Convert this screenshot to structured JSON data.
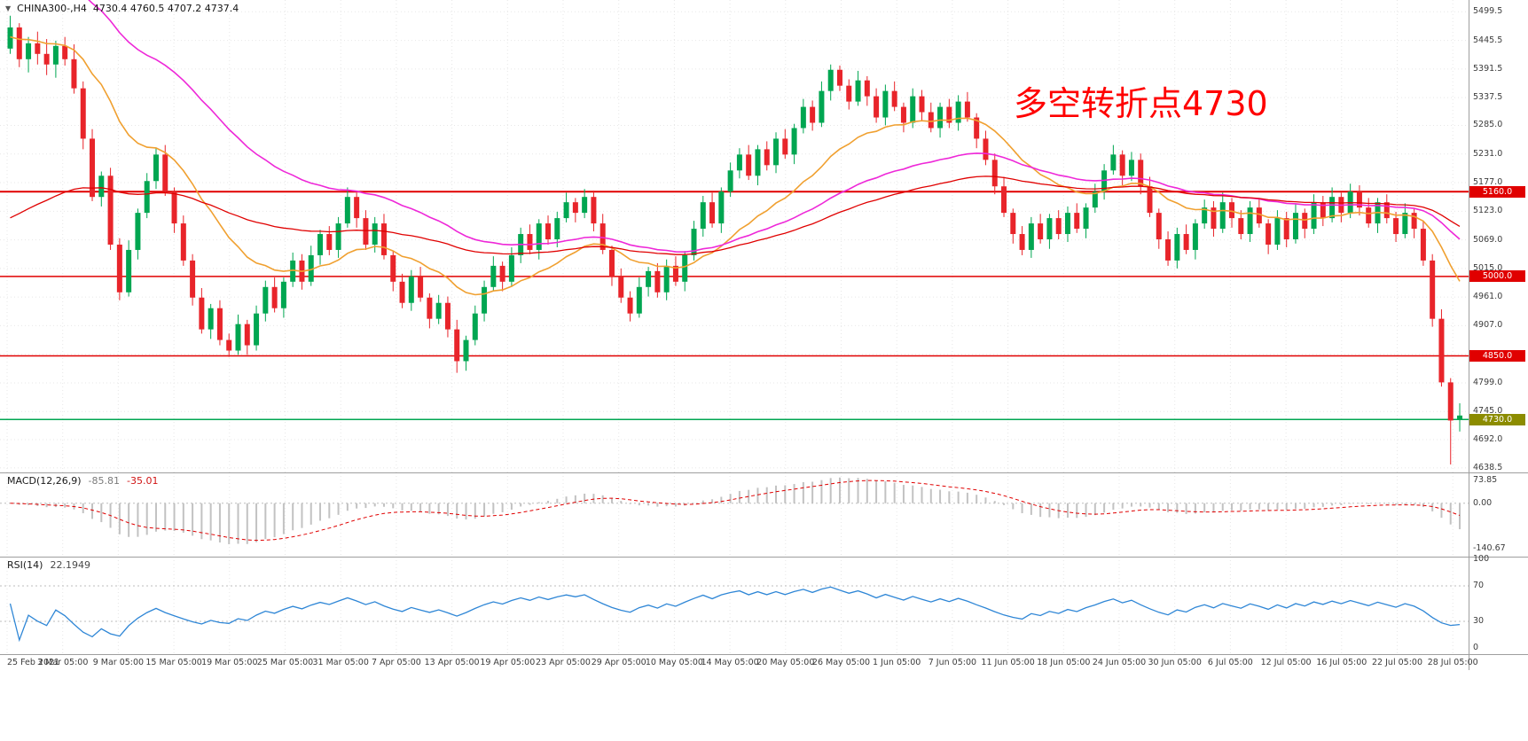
{
  "header": {
    "dropdown_icon": "▼",
    "symbol": "CHINA300-,H4",
    "ohlc": "4730.4 4760.5 4707.2 4737.4"
  },
  "annotation": {
    "text": "多空转折点4730",
    "color": "#ff0000"
  },
  "colors": {
    "up": "#00a651",
    "down": "#e8242a",
    "rsi": "#2e86d6",
    "macd_hist": "#c2c2c2",
    "macd_signal": "#e00000"
  },
  "price_axis": {
    "labels": [
      "5499.5",
      "5445.5",
      "5391.5",
      "5337.5",
      "5285.0",
      "5231.0",
      "5177.0",
      "5123.0",
      "5069.0",
      "5015.0",
      "4961.0",
      "4907.0",
      "4853.0",
      "4799.0",
      "4745.0",
      "4692.0",
      "4638.5"
    ],
    "values": [
      5499.5,
      5445.5,
      5391.5,
      5337.5,
      5285.0,
      5231.0,
      5177.0,
      5123.0,
      5069.0,
      5015.0,
      4961.0,
      4907.0,
      4853.0,
      4799.0,
      4745.0,
      4692.0,
      4638.5
    ]
  },
  "time_axis": {
    "labels": [
      "25 Feb 2021",
      "3 Mar 05:00",
      "9 Mar 05:00",
      "15 Mar 05:00",
      "19 Mar 05:00",
      "25 Mar 05:00",
      "31 Mar 05:00",
      "7 Apr 05:00",
      "13 Apr 05:00",
      "19 Apr 05:00",
      "23 Apr 05:00",
      "29 Apr 05:00",
      "10 May 05:00",
      "14 May 05:00",
      "20 May 05:00",
      "26 May 05:00",
      "1 Jun 05:00",
      "7 Jun 05:00",
      "11 Jun 05:00",
      "18 Jun 05:00",
      "24 Jun 05:00",
      "30 Jun 05:00",
      "6 Jul 05:00",
      "12 Jul 05:00",
      "16 Jul 05:00",
      "22 Jul 05:00",
      "28 Jul 05:00"
    ]
  },
  "hlines": [
    {
      "price": 5160,
      "label": "5160.0",
      "line_color": "#e00000",
      "tag_bg": "#e00000"
    },
    {
      "price": 5000,
      "label": "5000.0",
      "line_color": "#e00000",
      "tag_bg": "#e00000"
    },
    {
      "price": 4850,
      "label": "4850.0",
      "line_color": "#e00000",
      "tag_bg": "#e00000"
    },
    {
      "price": 4730,
      "label": "4730.0",
      "line_color": "#00a651",
      "tag_bg": "#8c8c00"
    }
  ],
  "macd": {
    "label": "MACD(12,26,9)",
    "value_main": "-85.81",
    "value_signal": "-35.01",
    "axis_top": "73.85",
    "axis_zero": "0.00",
    "axis_bottom": "-140.67"
  },
  "rsi": {
    "label": "RSI(14)",
    "value": "22.1949",
    "axis_100": "100",
    "axis_70": "70",
    "axis_30": "30",
    "axis_0": "0",
    "levels": [
      70,
      30
    ]
  },
  "chart_data": {
    "type": "candlestick",
    "symbol": "CHINA300",
    "timeframe": "H4",
    "last_ohlc": {
      "open": 4730.4,
      "high": 4760.5,
      "low": 4707.2,
      "close": 4737.4
    },
    "y_range": [
      4638.5,
      5499.5
    ],
    "support_resistance": [
      5160,
      5000,
      4850,
      4730
    ],
    "annotation": "多空转折点4730",
    "overlays": [
      {
        "name": "ma-fast",
        "color": "#f0a030",
        "period": 18,
        "seed": 5450,
        "width": 1.6
      },
      {
        "name": "ma-mid",
        "color": "#ee28d8",
        "period": 45,
        "seed": 5600,
        "width": 1.6
      },
      {
        "name": "ma-slow",
        "color": "#e00000",
        "period": 70,
        "seed": 5100,
        "width": 1.3
      }
    ],
    "indicators": [
      {
        "name": "MACD",
        "params": [
          12,
          26,
          9
        ],
        "current": [
          -85.81,
          -35.01
        ],
        "axis": [
          73.85,
          0.0,
          -140.67
        ]
      },
      {
        "name": "RSI",
        "params": [
          14
        ],
        "current": 22.1949,
        "levels": [
          70,
          30
        ]
      }
    ],
    "candles": [
      [
        5430,
        5492,
        5420,
        5470
      ],
      [
        5470,
        5478,
        5395,
        5410
      ],
      [
        5410,
        5452,
        5385,
        5440
      ],
      [
        5440,
        5462,
        5400,
        5420
      ],
      [
        5420,
        5448,
        5380,
        5400
      ],
      [
        5400,
        5445,
        5375,
        5435
      ],
      [
        5435,
        5452,
        5398,
        5410
      ],
      [
        5410,
        5438,
        5345,
        5355
      ],
      [
        5355,
        5368,
        5240,
        5260
      ],
      [
        5260,
        5278,
        5142,
        5150
      ],
      [
        5150,
        5198,
        5132,
        5190
      ],
      [
        5190,
        5205,
        5050,
        5060
      ],
      [
        5060,
        5072,
        4955,
        4970
      ],
      [
        4970,
        5068,
        4962,
        5050
      ],
      [
        5050,
        5128,
        5032,
        5120
      ],
      [
        5120,
        5195,
        5110,
        5180
      ],
      [
        5180,
        5242,
        5165,
        5230
      ],
      [
        5230,
        5248,
        5152,
        5160
      ],
      [
        5160,
        5168,
        5082,
        5100
      ],
      [
        5100,
        5115,
        5020,
        5030
      ],
      [
        5030,
        5042,
        4945,
        4960
      ],
      [
        4960,
        4978,
        4892,
        4900
      ],
      [
        4900,
        4948,
        4882,
        4940
      ],
      [
        4940,
        4955,
        4870,
        4880
      ],
      [
        4880,
        4892,
        4848,
        4860
      ],
      [
        4860,
        4928,
        4852,
        4910
      ],
      [
        4910,
        4918,
        4852,
        4870
      ],
      [
        4870,
        4945,
        4860,
        4930
      ],
      [
        4930,
        4992,
        4915,
        4980
      ],
      [
        4980,
        4998,
        4932,
        4940
      ],
      [
        4940,
        4998,
        4922,
        4990
      ],
      [
        4990,
        5045,
        4980,
        5030
      ],
      [
        5030,
        5042,
        4975,
        4990
      ],
      [
        4990,
        5058,
        4982,
        5040
      ],
      [
        5040,
        5088,
        5022,
        5080
      ],
      [
        5080,
        5095,
        5040,
        5050
      ],
      [
        5050,
        5112,
        5035,
        5100
      ],
      [
        5100,
        5168,
        5092,
        5150
      ],
      [
        5150,
        5158,
        5092,
        5110
      ],
      [
        5110,
        5125,
        5050,
        5060
      ],
      [
        5060,
        5112,
        5045,
        5100
      ],
      [
        5100,
        5118,
        5032,
        5040
      ],
      [
        5040,
        5048,
        4972,
        4990
      ],
      [
        4990,
        5005,
        4940,
        4950
      ],
      [
        4950,
        5012,
        4935,
        5000
      ],
      [
        5000,
        5018,
        4952,
        4960
      ],
      [
        4960,
        4968,
        4902,
        4920
      ],
      [
        4920,
        4965,
        4910,
        4950
      ],
      [
        4950,
        4962,
        4885,
        4900
      ],
      [
        4900,
        4918,
        4818,
        4840
      ],
      [
        4840,
        4888,
        4822,
        4880
      ],
      [
        4880,
        4945,
        4870,
        4930
      ],
      [
        4930,
        4992,
        4915,
        4980
      ],
      [
        4980,
        5038,
        4972,
        5020
      ],
      [
        5020,
        5028,
        4972,
        4990
      ],
      [
        4990,
        5055,
        4980,
        5040
      ],
      [
        5040,
        5092,
        5025,
        5080
      ],
      [
        5080,
        5098,
        5042,
        5050
      ],
      [
        5050,
        5108,
        5032,
        5100
      ],
      [
        5100,
        5115,
        5060,
        5070
      ],
      [
        5070,
        5122,
        5055,
        5110
      ],
      [
        5110,
        5158,
        5102,
        5140
      ],
      [
        5140,
        5148,
        5102,
        5120
      ],
      [
        5120,
        5165,
        5110,
        5150
      ],
      [
        5150,
        5162,
        5085,
        5100
      ],
      [
        5100,
        5118,
        5042,
        5050
      ],
      [
        5050,
        5058,
        4982,
        5000
      ],
      [
        5000,
        5015,
        4950,
        4960
      ],
      [
        4960,
        4972,
        4915,
        4930
      ],
      [
        4930,
        4998,
        4922,
        4980
      ],
      [
        4980,
        5018,
        4962,
        5010
      ],
      [
        5010,
        5025,
        4960,
        4970
      ],
      [
        4970,
        5032,
        4955,
        5020
      ],
      [
        5020,
        5038,
        4982,
        4990
      ],
      [
        4990,
        5048,
        4972,
        5040
      ],
      [
        5040,
        5105,
        5030,
        5090
      ],
      [
        5090,
        5152,
        5075,
        5140
      ],
      [
        5140,
        5158,
        5092,
        5100
      ],
      [
        5100,
        5168,
        5082,
        5160
      ],
      [
        5160,
        5215,
        5150,
        5200
      ],
      [
        5200,
        5242,
        5185,
        5230
      ],
      [
        5230,
        5248,
        5182,
        5190
      ],
      [
        5190,
        5248,
        5172,
        5240
      ],
      [
        5240,
        5255,
        5200,
        5210
      ],
      [
        5210,
        5272,
        5195,
        5260
      ],
      [
        5260,
        5278,
        5222,
        5230
      ],
      [
        5230,
        5288,
        5212,
        5280
      ],
      [
        5280,
        5335,
        5270,
        5320
      ],
      [
        5320,
        5332,
        5275,
        5290
      ],
      [
        5290,
        5368,
        5282,
        5350
      ],
      [
        5350,
        5400,
        5332,
        5390
      ],
      [
        5390,
        5398,
        5350,
        5360
      ],
      [
        5360,
        5372,
        5315,
        5330
      ],
      [
        5330,
        5388,
        5322,
        5370
      ],
      [
        5370,
        5378,
        5322,
        5340
      ],
      [
        5340,
        5355,
        5290,
        5300
      ],
      [
        5300,
        5362,
        5285,
        5350
      ],
      [
        5350,
        5368,
        5312,
        5320
      ],
      [
        5320,
        5328,
        5272,
        5290
      ],
      [
        5290,
        5355,
        5280,
        5340
      ],
      [
        5340,
        5352,
        5295,
        5310
      ],
      [
        5310,
        5328,
        5272,
        5280
      ],
      [
        5280,
        5328,
        5262,
        5320
      ],
      [
        5320,
        5335,
        5280,
        5290
      ],
      [
        5290,
        5342,
        5275,
        5330
      ],
      [
        5330,
        5348,
        5292,
        5300
      ],
      [
        5300,
        5308,
        5242,
        5260
      ],
      [
        5260,
        5275,
        5210,
        5220
      ],
      [
        5220,
        5232,
        5155,
        5170
      ],
      [
        5170,
        5188,
        5112,
        5120
      ],
      [
        5120,
        5128,
        5062,
        5080
      ],
      [
        5080,
        5095,
        5040,
        5050
      ],
      [
        5050,
        5112,
        5035,
        5100
      ],
      [
        5100,
        5118,
        5062,
        5070
      ],
      [
        5070,
        5118,
        5052,
        5110
      ],
      [
        5110,
        5125,
        5070,
        5080
      ],
      [
        5080,
        5132,
        5065,
        5120
      ],
      [
        5120,
        5138,
        5082,
        5090
      ],
      [
        5090,
        5138,
        5072,
        5130
      ],
      [
        5130,
        5175,
        5120,
        5160
      ],
      [
        5160,
        5212,
        5145,
        5200
      ],
      [
        5200,
        5248,
        5192,
        5230
      ],
      [
        5230,
        5238,
        5172,
        5190
      ],
      [
        5190,
        5235,
        5180,
        5220
      ],
      [
        5220,
        5232,
        5155,
        5170
      ],
      [
        5170,
        5188,
        5112,
        5120
      ],
      [
        5120,
        5128,
        5052,
        5070
      ],
      [
        5070,
        5085,
        5020,
        5030
      ],
      [
        5030,
        5092,
        5015,
        5080
      ],
      [
        5080,
        5098,
        5042,
        5050
      ],
      [
        5050,
        5108,
        5032,
        5100
      ],
      [
        5100,
        5145,
        5090,
        5130
      ],
      [
        5130,
        5142,
        5075,
        5090
      ],
      [
        5090,
        5158,
        5082,
        5140
      ],
      [
        5140,
        5148,
        5092,
        5110
      ],
      [
        5110,
        5125,
        5070,
        5080
      ],
      [
        5080,
        5142,
        5065,
        5130
      ],
      [
        5130,
        5148,
        5092,
        5100
      ],
      [
        5100,
        5108,
        5042,
        5060
      ],
      [
        5060,
        5125,
        5050,
        5110
      ],
      [
        5110,
        5122,
        5055,
        5070
      ],
      [
        5070,
        5138,
        5062,
        5120
      ],
      [
        5120,
        5128,
        5072,
        5090
      ],
      [
        5090,
        5155,
        5080,
        5140
      ],
      [
        5140,
        5152,
        5095,
        5110
      ],
      [
        5110,
        5168,
        5102,
        5150
      ],
      [
        5150,
        5158,
        5102,
        5120
      ],
      [
        5120,
        5175,
        5110,
        5160
      ],
      [
        5160,
        5172,
        5115,
        5130
      ],
      [
        5130,
        5148,
        5092,
        5100
      ],
      [
        5100,
        5148,
        5082,
        5140
      ],
      [
        5140,
        5155,
        5100,
        5110
      ],
      [
        5110,
        5122,
        5065,
        5080
      ],
      [
        5080,
        5138,
        5072,
        5120
      ],
      [
        5120,
        5128,
        5072,
        5090
      ],
      [
        5090,
        5105,
        5020,
        5030
      ],
      [
        5030,
        5042,
        4905,
        4920
      ],
      [
        4920,
        4938,
        4792,
        4800
      ],
      [
        4800,
        4808,
        4645,
        4728
      ],
      [
        4730.4,
        4760.5,
        4707.2,
        4737.4
      ]
    ]
  }
}
